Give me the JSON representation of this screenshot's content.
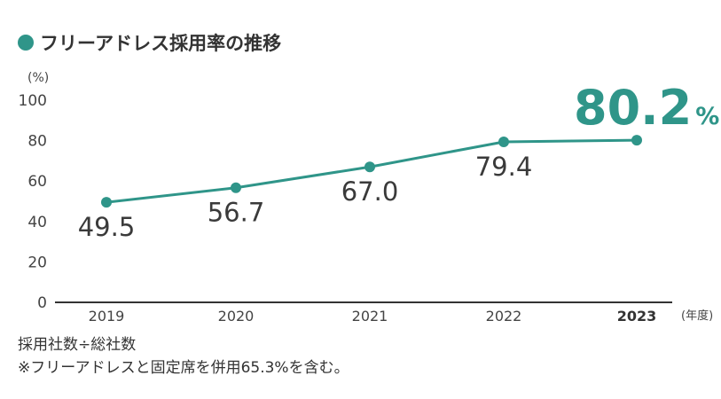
{
  "title": "フリーアドレス採用率の推移",
  "colors": {
    "accent": "#2f9589",
    "axis": "#333333",
    "text": "#3a3a3a"
  },
  "chart_data": {
    "type": "line",
    "title": "フリーアドレス採用率の推移",
    "ylabel": "(%)",
    "xlabel": "(年度)",
    "ylim": [
      0,
      100
    ],
    "yticks": [
      "0",
      "20",
      "40",
      "60",
      "80",
      "100"
    ],
    "x": [
      "2019",
      "2020",
      "2021",
      "2022",
      "2023"
    ],
    "values": [
      49.5,
      56.7,
      67.0,
      79.4,
      80.2
    ],
    "labels": [
      "49.5",
      "56.7",
      "67.0",
      "79.4"
    ],
    "highlight": {
      "value": "80.2",
      "unit": "%"
    },
    "grid": false,
    "legend": "none"
  },
  "notes": [
    "採用社数÷総社数",
    "※フリーアドレスと固定席を併用65.3%を含む。"
  ]
}
